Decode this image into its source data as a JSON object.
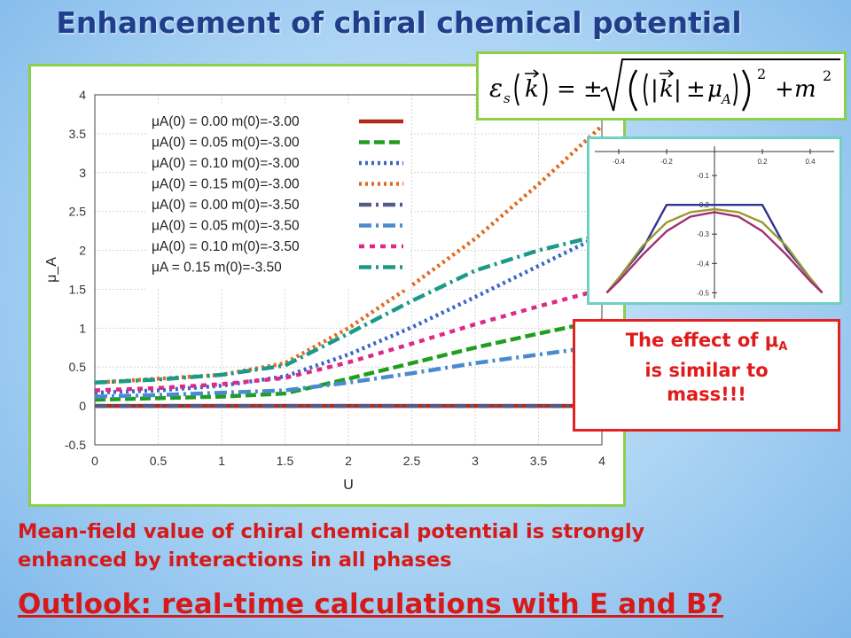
{
  "slide": {
    "title": "Enhancement of chiral chemical potential",
    "conclusion_line1": "Mean-field value of chiral chemical potential is strongly",
    "conclusion_line2": "enhanced by interactions in all phases",
    "outlook": "Outlook: real-time calculations with E and B?",
    "effect_line1": "The effect of μ",
    "effect_sub": "A",
    "effect_line2": "is similar to",
    "effect_line3": "mass!!!",
    "formula_text": "ε_s(k⃗) = ±√((|k⃗| ± μ_A)² + m²)",
    "colors": {
      "title": "#1f3f8c",
      "highlight_red": "#e01b1b",
      "frame_green": "#8bd04a",
      "inset_frame": "#6fd0c4"
    }
  },
  "chart_data": [
    {
      "type": "line",
      "xlabel": "U",
      "ylabel": "μ_A",
      "xlim": [
        0,
        4
      ],
      "ylim": [
        -0.5,
        4
      ],
      "xticks": [
        "0",
        "0.5",
        "1",
        "1.5",
        "2",
        "2.5",
        "3",
        "3.5",
        "4"
      ],
      "yticks": [
        "-0.5",
        "0",
        "0.5",
        "1",
        "1.5",
        "2",
        "2.5",
        "3",
        "3.5",
        "4"
      ],
      "grid": true,
      "legend_position": "top-left",
      "x": [
        0,
        0.5,
        1.0,
        1.5,
        2.0,
        2.5,
        3.0,
        3.5,
        4.0
      ],
      "series": [
        {
          "name": "μA(0) = 0.00   m(0)=-3.00",
          "color": "#b22a1a",
          "dash": "solid",
          "values": [
            0,
            0,
            0,
            0,
            0,
            0,
            0,
            0,
            0
          ]
        },
        {
          "name": "μA(0) = 0.05   m(0)=-3.00",
          "color": "#1f9e1f",
          "dash": "long",
          "values": [
            0.08,
            0.1,
            0.12,
            0.16,
            0.35,
            0.55,
            0.75,
            0.93,
            1.1
          ]
        },
        {
          "name": "μA(0) = 0.10   m(0)=-3.00",
          "color": "#3a66c8",
          "dash": "dot",
          "values": [
            0.17,
            0.2,
            0.26,
            0.38,
            0.66,
            1.01,
            1.4,
            1.8,
            2.2
          ]
        },
        {
          "name": "μA(0) = 0.15   m(0)=-3.00",
          "color": "#e06a20",
          "dash": "dot",
          "values": [
            0.3,
            0.35,
            0.4,
            0.55,
            1.0,
            1.55,
            2.15,
            2.85,
            3.6
          ]
        },
        {
          "name": "μA(0) = 0.00   m(0)=-3.50",
          "color": "#555a86",
          "dash": "dashdot",
          "values": [
            0,
            0,
            0,
            0,
            0,
            0,
            0,
            0,
            0
          ]
        },
        {
          "name": "μA(0) = 0.05   m(0)=-3.50",
          "color": "#4a8ad0",
          "dash": "dashdot",
          "values": [
            0.12,
            0.14,
            0.17,
            0.2,
            0.3,
            0.42,
            0.55,
            0.66,
            0.77
          ]
        },
        {
          "name": "μA(0) = 0.10   m(0)=-3.50",
          "color": "#dd2a8a",
          "dash": "short",
          "values": [
            0.2,
            0.23,
            0.28,
            0.36,
            0.56,
            0.8,
            1.05,
            1.28,
            1.5
          ]
        },
        {
          "name": "μA      = 0.15   m(0)=-3.50",
          "color": "#1a9a88",
          "dash": "dashdot",
          "values": [
            0.3,
            0.34,
            0.4,
            0.52,
            0.93,
            1.35,
            1.74,
            2.0,
            2.2
          ]
        }
      ]
    },
    {
      "type": "line",
      "xlim": [
        -0.5,
        0.5
      ],
      "ylim": [
        -0.52,
        0
      ],
      "xticks": [
        "-0.4",
        "-0.2",
        "0.2",
        "0.4"
      ],
      "yticks": [
        "-0.1",
        "-0.2",
        "-0.3",
        "-0.4",
        "-0.5"
      ],
      "x": [
        -0.45,
        -0.4,
        -0.3,
        -0.2,
        -0.1,
        0,
        0.1,
        0.2,
        0.3,
        0.4,
        0.45
      ],
      "series": [
        {
          "color": "#33338f",
          "values": [
            -0.5,
            -0.45,
            -0.35,
            -0.2,
            -0.2,
            -0.2,
            -0.2,
            -0.2,
            -0.35,
            -0.45,
            -0.5
          ]
        },
        {
          "color": "#9a9a30",
          "values": [
            -0.5,
            -0.45,
            -0.34,
            -0.26,
            -0.225,
            -0.215,
            -0.225,
            -0.26,
            -0.34,
            -0.45,
            -0.5
          ]
        },
        {
          "color": "#a03070",
          "values": [
            -0.5,
            -0.46,
            -0.37,
            -0.29,
            -0.24,
            -0.225,
            -0.24,
            -0.29,
            -0.37,
            -0.46,
            -0.5
          ]
        }
      ]
    }
  ]
}
